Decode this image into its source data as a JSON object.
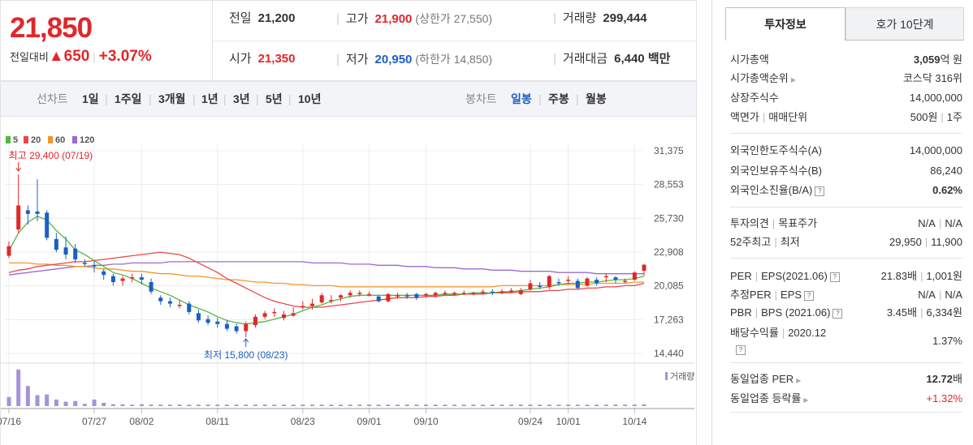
{
  "quote": {
    "current_price": "21,850",
    "change_label": "전일대비",
    "change_arrow": "▲",
    "change_amount": "650",
    "change_percent": "+3.07%",
    "prev_close_label": "전일",
    "prev_close": "21,200",
    "open_label": "시가",
    "open": "21,350",
    "high_label": "고가",
    "high": "21,900",
    "upper_limit": "(상한가 27,550)",
    "low_label": "저가",
    "low": "20,950",
    "lower_limit": "(하한가 14,850)",
    "volume_label": "거래량",
    "volume": "299,444",
    "trade_amount_label": "거래대금",
    "trade_amount": "6,440 백만"
  },
  "period_bar": {
    "line_label": "선차트",
    "line_options": [
      "1일",
      "1주일",
      "3개월",
      "1년",
      "3년",
      "5년",
      "10년"
    ],
    "candle_label": "봉차트",
    "candle_options": [
      "일봉",
      "주봉",
      "월봉"
    ],
    "active_candle": "일봉"
  },
  "colors": {
    "up": "#e0272a",
    "down": "#1a5fc7",
    "ma5": "#4fba3c",
    "ma20": "#e9474b",
    "ma60": "#f3962a",
    "ma120": "#9b6bd0",
    "volume": "#a493d8"
  },
  "chart_data": {
    "type": "candlestick",
    "legend": [
      "5",
      "20",
      "60",
      "120"
    ],
    "y_ticks": [
      "31,375",
      "28,553",
      "25,730",
      "22,908",
      "20,085",
      "17,263",
      "14,440"
    ],
    "ylim": [
      14440,
      31375
    ],
    "x_ticks": [
      "07/16",
      "07/27",
      "08/02",
      "08/11",
      "08/23",
      "09/01",
      "09/10",
      "09/24",
      "10/01",
      "10/14"
    ],
    "max_annotation": "최고 29,400 (07/19)",
    "min_annotation": "최저 15,800 (08/23)",
    "volume_label": "거래량",
    "candles": [
      {
        "o": 22600,
        "c": 23400,
        "h": 23800,
        "l": 22400
      },
      {
        "o": 24800,
        "c": 26800,
        "h": 29400,
        "l": 24500
      },
      {
        "o": 26400,
        "c": 26100,
        "h": 26800,
        "l": 25200
      },
      {
        "o": 26300,
        "c": 26100,
        "h": 29000,
        "l": 25500
      },
      {
        "o": 26200,
        "c": 24100,
        "h": 26400,
        "l": 23900
      },
      {
        "o": 24000,
        "c": 23100,
        "h": 24500,
        "l": 22900
      },
      {
        "o": 23300,
        "c": 22700,
        "h": 24200,
        "l": 22300
      },
      {
        "o": 23200,
        "c": 22300,
        "h": 23600,
        "l": 22000
      },
      {
        "o": 22000,
        "c": 21900,
        "h": 22300,
        "l": 21700
      },
      {
        "o": 21800,
        "c": 21700,
        "h": 22200,
        "l": 21200
      },
      {
        "o": 21300,
        "c": 21000,
        "h": 21500,
        "l": 20600
      },
      {
        "o": 20900,
        "c": 20400,
        "h": 21100,
        "l": 20100
      },
      {
        "o": 20500,
        "c": 20700,
        "h": 20900,
        "l": 20100
      },
      {
        "o": 20700,
        "c": 20800,
        "h": 21100,
        "l": 20400
      },
      {
        "o": 20800,
        "c": 20600,
        "h": 21100,
        "l": 20200
      },
      {
        "o": 20400,
        "c": 19600,
        "h": 20700,
        "l": 19400
      },
      {
        "o": 19100,
        "c": 18800,
        "h": 19300,
        "l": 18500
      },
      {
        "o": 18800,
        "c": 18600,
        "h": 19100,
        "l": 18300
      },
      {
        "o": 18500,
        "c": 18500,
        "h": 18900,
        "l": 18200
      },
      {
        "o": 18600,
        "c": 17900,
        "h": 18800,
        "l": 17700
      },
      {
        "o": 17800,
        "c": 17200,
        "h": 18100,
        "l": 17000
      },
      {
        "o": 17300,
        "c": 17000,
        "h": 17600,
        "l": 16800
      },
      {
        "o": 17100,
        "c": 16900,
        "h": 17400,
        "l": 16600
      },
      {
        "o": 16900,
        "c": 16500,
        "h": 17200,
        "l": 16300
      },
      {
        "o": 16700,
        "c": 16300,
        "h": 16900,
        "l": 16100
      },
      {
        "o": 16300,
        "c": 16900,
        "h": 17100,
        "l": 15800
      },
      {
        "o": 16800,
        "c": 17500,
        "h": 17700,
        "l": 16600
      },
      {
        "o": 17500,
        "c": 17800,
        "h": 18000,
        "l": 17300
      },
      {
        "o": 17900,
        "c": 17900,
        "h": 18200,
        "l": 17500
      },
      {
        "o": 17400,
        "c": 17700,
        "h": 18000,
        "l": 17200
      },
      {
        "o": 17600,
        "c": 17800,
        "h": 18300,
        "l": 17500
      },
      {
        "o": 18300,
        "c": 18400,
        "h": 18800,
        "l": 18100
      },
      {
        "o": 18400,
        "c": 18600,
        "h": 19000,
        "l": 18100
      },
      {
        "o": 18700,
        "c": 19300,
        "h": 19500,
        "l": 18600
      },
      {
        "o": 18800,
        "c": 18900,
        "h": 19300,
        "l": 18600
      },
      {
        "o": 19100,
        "c": 19300,
        "h": 19400,
        "l": 18800
      },
      {
        "o": 19300,
        "c": 19500,
        "h": 19700,
        "l": 19100
      },
      {
        "o": 19500,
        "c": 19500,
        "h": 19700,
        "l": 19200
      },
      {
        "o": 19400,
        "c": 19400,
        "h": 19600,
        "l": 19200
      },
      {
        "o": 19200,
        "c": 18800,
        "h": 19300,
        "l": 18700
      },
      {
        "o": 18800,
        "c": 19400,
        "h": 19500,
        "l": 18700
      },
      {
        "o": 19300,
        "c": 19300,
        "h": 19500,
        "l": 19000
      },
      {
        "o": 19300,
        "c": 19200,
        "h": 19500,
        "l": 19000
      },
      {
        "o": 19400,
        "c": 19100,
        "h": 19500,
        "l": 18900
      },
      {
        "o": 19300,
        "c": 19400,
        "h": 19500,
        "l": 19100
      },
      {
        "o": 19300,
        "c": 19500,
        "h": 19600,
        "l": 19100
      },
      {
        "o": 19400,
        "c": 19500,
        "h": 19700,
        "l": 19300
      },
      {
        "o": 19400,
        "c": 19500,
        "h": 19600,
        "l": 19300
      },
      {
        "o": 19500,
        "c": 19500,
        "h": 19700,
        "l": 19300
      },
      {
        "o": 19400,
        "c": 19500,
        "h": 19600,
        "l": 19300
      },
      {
        "o": 19500,
        "c": 19600,
        "h": 19800,
        "l": 19400
      },
      {
        "o": 19600,
        "c": 19500,
        "h": 19800,
        "l": 19300
      },
      {
        "o": 19500,
        "c": 19600,
        "h": 19800,
        "l": 19400
      },
      {
        "o": 19600,
        "c": 19700,
        "h": 19900,
        "l": 19500
      },
      {
        "o": 19400,
        "c": 19700,
        "h": 19900,
        "l": 19300
      },
      {
        "o": 19800,
        "c": 20300,
        "h": 20600,
        "l": 19700
      },
      {
        "o": 20100,
        "c": 20000,
        "h": 20400,
        "l": 19800
      },
      {
        "o": 20000,
        "c": 20900,
        "h": 21000,
        "l": 19800
      },
      {
        "o": 20400,
        "c": 20300,
        "h": 20700,
        "l": 20100
      },
      {
        "o": 20600,
        "c": 20600,
        "h": 20900,
        "l": 20200
      },
      {
        "o": 20500,
        "c": 19900,
        "h": 20700,
        "l": 19800
      },
      {
        "o": 20100,
        "c": 20700,
        "h": 20800,
        "l": 20000
      },
      {
        "o": 20600,
        "c": 20300,
        "h": 20800,
        "l": 20100
      },
      {
        "o": 20800,
        "c": 20900,
        "h": 21100,
        "l": 20400
      },
      {
        "o": 20800,
        "c": 20600,
        "h": 20900,
        "l": 20300
      },
      {
        "o": 20500,
        "c": 20500,
        "h": 20700,
        "l": 20300
      },
      {
        "o": 20600,
        "c": 21200,
        "h": 21300,
        "l": 20500
      },
      {
        "o": 21350,
        "c": 21850,
        "h": 21900,
        "l": 20950
      }
    ],
    "ma5": [
      23000,
      24500,
      25400,
      25900,
      25600,
      24700,
      24000,
      23100,
      22700,
      22200,
      21700,
      21200,
      21000,
      20700,
      20300,
      19900,
      19600,
      19300,
      18900,
      18500,
      18200,
      17900,
      17500,
      17200,
      17000,
      16900,
      17000,
      17100,
      17300,
      17500,
      17700,
      18000,
      18300,
      18500,
      18800,
      19000,
      19200,
      19300,
      19300,
      19300,
      19300,
      19300,
      19300,
      19300,
      19300,
      19300,
      19400,
      19400,
      19400,
      19500,
      19500,
      19500,
      19600,
      19600,
      19700,
      19800,
      19900,
      20000,
      20200,
      20300,
      20300,
      20400,
      20400,
      20500,
      20600,
      20600,
      20700,
      20900
    ],
    "ma20": [
      21200,
      21400,
      21500,
      21700,
      21800,
      21900,
      22000,
      22100,
      22100,
      22200,
      22300,
      22400,
      22500,
      22600,
      22700,
      22800,
      22900,
      22800,
      22700,
      22400,
      22000,
      21600,
      21200,
      20700,
      20300,
      19900,
      19500,
      19100,
      18800,
      18600,
      18400,
      18300,
      18300,
      18300,
      18400,
      18500,
      18600,
      18700,
      18800,
      18900,
      19000,
      19100,
      19100,
      19100,
      19200,
      19200,
      19300,
      19300,
      19400,
      19400,
      19400,
      19500,
      19500,
      19500,
      19600,
      19600,
      19600,
      19700,
      19700,
      19800,
      19800,
      19900,
      19900,
      20000,
      20000,
      20100,
      20100,
      20300
    ],
    "ma60": [
      22000,
      22000,
      22000,
      21900,
      21900,
      21800,
      21800,
      21700,
      21700,
      21600,
      21500,
      21500,
      21400,
      21300,
      21300,
      21200,
      21100,
      21100,
      21000,
      20900,
      20900,
      20800,
      20700,
      20600,
      20600,
      20500,
      20400,
      20400,
      20300,
      20300,
      20200,
      20200,
      20100,
      20100,
      20100,
      20000,
      20000,
      20000,
      20000,
      20000,
      20000,
      20000,
      20000,
      20000,
      20000,
      20000,
      20000,
      20000,
      20000,
      20000,
      20000,
      20000,
      20100,
      20100,
      20100,
      20100,
      20100,
      20100,
      20200,
      20200,
      20200,
      20200,
      20300,
      20300,
      20300,
      20300,
      20400,
      20400
    ],
    "ma120": [
      21000,
      21100,
      21200,
      21300,
      21400,
      21500,
      21600,
      21700,
      21700,
      21800,
      21800,
      21900,
      21900,
      22000,
      22000,
      22000,
      22000,
      22100,
      22100,
      22100,
      22100,
      22100,
      22100,
      22100,
      22100,
      22100,
      22100,
      22100,
      22100,
      22100,
      22100,
      22100,
      22000,
      22000,
      22000,
      22000,
      21900,
      21900,
      21900,
      21800,
      21800,
      21800,
      21700,
      21700,
      21700,
      21600,
      21600,
      21600,
      21500,
      21500,
      21500,
      21400,
      21400,
      21400,
      21300,
      21300,
      21300,
      21300,
      21200,
      21200,
      21200,
      21200,
      21100,
      21100,
      21100,
      21100,
      21100,
      21100
    ],
    "volume": [
      0.25,
      1.0,
      0.55,
      0.3,
      0.32,
      0.18,
      0.12,
      0.14,
      0.06,
      0.18,
      0.09,
      0.05,
      0.05,
      0.04,
      0.05,
      0.04,
      0.04,
      0.04,
      0.04,
      0.04,
      0.04,
      0.04,
      0.04,
      0.04,
      0.04,
      0.04,
      0.04,
      0.04,
      0.04,
      0.04,
      0.04,
      0.04,
      0.04,
      0.04,
      0.04,
      0.04,
      0.04,
      0.04,
      0.04,
      0.04,
      0.04,
      0.04,
      0.04,
      0.04,
      0.04,
      0.04,
      0.04,
      0.04,
      0.04,
      0.04,
      0.04,
      0.04,
      0.04,
      0.04,
      0.04,
      0.04,
      0.04,
      0.04,
      0.04,
      0.04,
      0.04,
      0.04,
      0.04,
      0.04,
      0.04,
      0.04,
      0.04,
      0.05
    ]
  },
  "invest_panel": {
    "tab_invest": "투자정보",
    "tab_hoga": "호가 10단계",
    "rows1": [
      {
        "k": "시가총액",
        "v_bold": "3,059",
        "v_rest": "억 원"
      },
      {
        "k": "시가총액순위",
        "v_bold": "",
        "v_rest": "코스닥 316위"
      },
      {
        "k": "상장주식수",
        "v_bold": "",
        "v_rest": "14,000,000"
      },
      {
        "k": "액면가",
        "k2": "매매단위",
        "v_bold": "",
        "v_rest": "500원",
        "v_rest2": "1주"
      }
    ],
    "rows2": [
      {
        "k": "외국인한도주식수(A)",
        "v": "14,000,000"
      },
      {
        "k": "외국인보유주식수(B)",
        "v": "86,240"
      },
      {
        "k": "외국인소진율(B/A)",
        "v": "0.62%"
      }
    ],
    "rows3": [
      {
        "k": "투자의견",
        "k2": "목표주가",
        "v": "N/A",
        "v2": "N/A"
      },
      {
        "k": "52주최고",
        "k2": "최저",
        "v": "29,950",
        "v2": "11,900"
      }
    ],
    "rows4": [
      {
        "k": "PER",
        "k2": "EPS(2021.06)",
        "v": "21.83배",
        "v2": "1,001원"
      },
      {
        "k": "추정PER",
        "k2": "EPS",
        "v": "N/A",
        "v2": "N/A"
      },
      {
        "k": "PBR",
        "k2": "BPS (2021.06)",
        "v": "3.45배",
        "v2": "6,334원"
      },
      {
        "k": "배당수익률",
        "k2": "2020.12",
        "v": "1.37%"
      }
    ],
    "rows5": [
      {
        "k": "동일업종 PER",
        "v_bold": "12.72",
        "v_rest": "배"
      },
      {
        "k": "동일업종 등락률",
        "v": "+1.32%"
      }
    ]
  }
}
